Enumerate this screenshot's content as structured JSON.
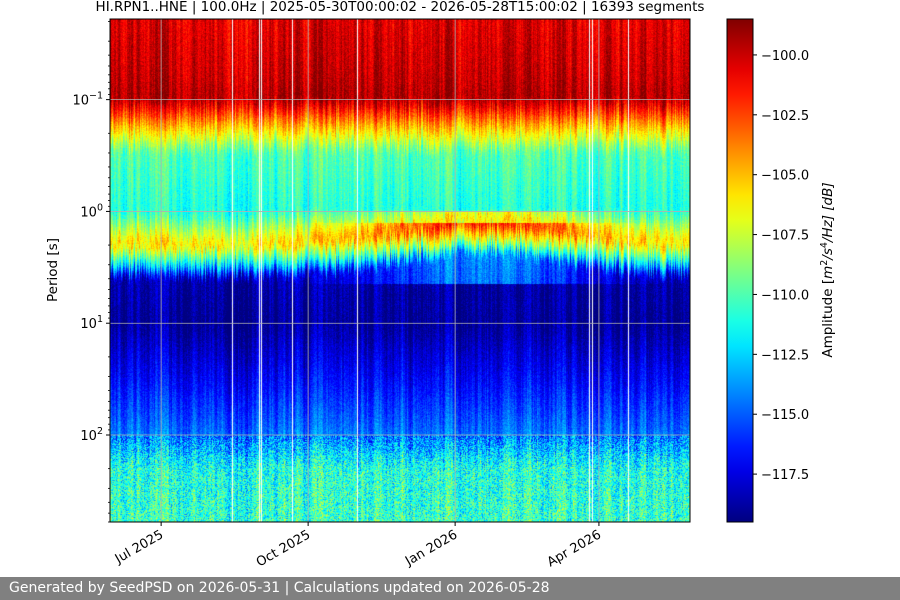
{
  "chart_data": {
    "type": "heatmap",
    "title": "HI.RPN1..HNE | 100.0Hz | 2025-05-30T00:00:02 - 2026-05-28T15:00:02 | 16393 segments",
    "ylabel": "Period [s]",
    "y_scale": "log",
    "y_inverted": true,
    "ylim": [
      0.019,
      600
    ],
    "y_ticks": [
      {
        "value": 0.1,
        "base": "10",
        "exp": "−1"
      },
      {
        "value": 1,
        "base": "10",
        "exp": "0"
      },
      {
        "value": 10,
        "base": "10",
        "exp": "1"
      },
      {
        "value": 100,
        "base": "10",
        "exp": "2"
      }
    ],
    "xlim": [
      "2025-05-30",
      "2026-05-28"
    ],
    "x_ticks": [
      {
        "date": "2025-07-01",
        "label": "Jul 2025"
      },
      {
        "date": "2025-10-01",
        "label": "Oct 2025"
      },
      {
        "date": "2026-01-01",
        "label": "Jan 2026"
      },
      {
        "date": "2026-04-01",
        "label": "Apr 2026"
      }
    ],
    "grid": true,
    "colormap": "jet",
    "colorbar": {
      "label_prefix": "Amplitude [",
      "label_math": "m",
      "label_exp1": "2",
      "label_mid": "/s",
      "label_exp2": "4",
      "label_end": "/Hz] [dB]",
      "vmin": -119.5,
      "vmax": -98.5,
      "ticks": [
        "−100.0",
        "−102.5",
        "−105.0",
        "−107.5",
        "−110.0",
        "−112.5",
        "−115.0",
        "−117.5"
      ],
      "tick_values": [
        -100.0,
        -102.5,
        -105.0,
        -107.5,
        -110.0,
        -112.5,
        -115.0,
        -117.5
      ]
    },
    "period_profile": [
      {
        "period": 0.02,
        "db": -100.5
      },
      {
        "period": 0.06,
        "db": -100.0
      },
      {
        "period": 0.1,
        "db": -99.5
      },
      {
        "period": 0.15,
        "db": -103.5
      },
      {
        "period": 0.3,
        "db": -110.0
      },
      {
        "period": 1.0,
        "db": -111.0
      },
      {
        "period": 2.0,
        "db": -105.5
      },
      {
        "period": 3.0,
        "db": -112.0
      },
      {
        "period": 4.0,
        "db": -118.5
      },
      {
        "period": 10.0,
        "db": -119.0
      },
      {
        "period": 30.0,
        "db": -117.0
      },
      {
        "period": 100.0,
        "db": -114.5
      },
      {
        "period": 200.0,
        "db": -111.0
      },
      {
        "period": 600.0,
        "db": -110.5
      }
    ]
  },
  "footer": {
    "text": "Generated by SeedPSD on 2026-05-31 | Calculations updated on 2026-05-28"
  }
}
